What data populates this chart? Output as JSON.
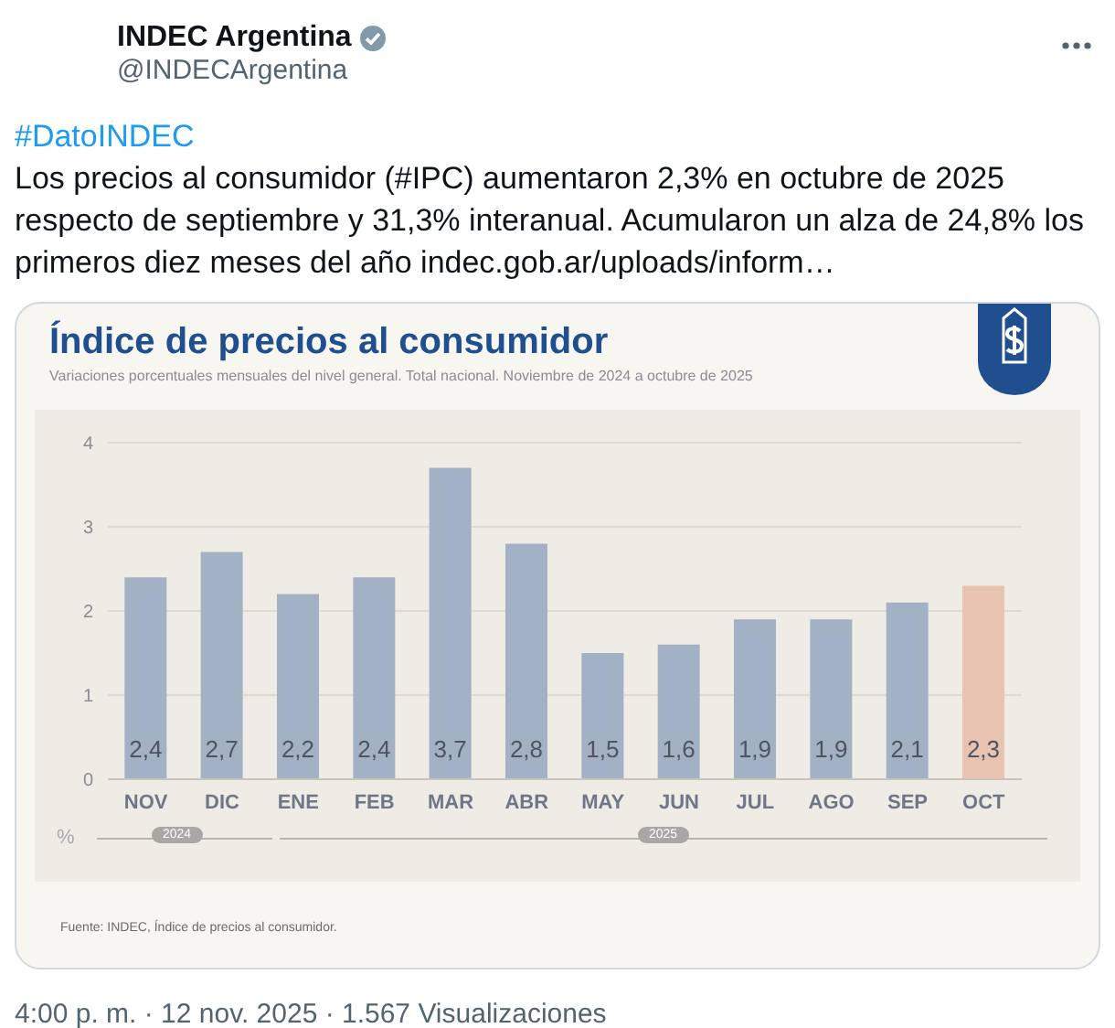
{
  "chart_data": {
    "type": "bar",
    "title": "Índice de precios al consumidor",
    "subtitle": "Variaciones porcentuales mensuales del nivel general. Total nacional. Noviembre de 2024 a octubre de 2025",
    "ylabel": "%",
    "categories": [
      "NOV",
      "DIC",
      "ENE",
      "FEB",
      "MAR",
      "ABR",
      "MAY",
      "JUN",
      "JUL",
      "AGO",
      "SEP",
      "OCT"
    ],
    "values": [
      2.4,
      2.7,
      2.2,
      2.4,
      3.7,
      2.8,
      1.5,
      1.6,
      1.9,
      1.9,
      2.1,
      2.3
    ],
    "colors": [
      "#a3b1c4",
      "#a3b1c4",
      "#a3b1c4",
      "#a3b1c4",
      "#a3b1c4",
      "#a3b1c4",
      "#a3b1c4",
      "#a3b1c4",
      "#a3b1c4",
      "#a3b1c4",
      "#a3b1c4",
      "#e9c3b1"
    ],
    "value_labels": [
      "2,4",
      "2,7",
      "2,2",
      "2,4",
      "3,7",
      "2,8",
      "1,5",
      "1,6",
      "1,9",
      "1,9",
      "2,1",
      "2,3"
    ],
    "ylim": [
      0,
      4
    ],
    "yticks": [
      0,
      1,
      2,
      3,
      4
    ],
    "grid": "y",
    "annotations": [
      "INDEC Argentina",
      "@INDECArgentina",
      "#DatoINDEC",
      "Los precios al consumidor (#IPC) aumentaron 2,3% en octubre de 2025 respecto de septiembre y 31,3% interanual. Acumularon un alza de 24,8% los primeros diez meses del año indec.gob.ar/uploads/inform…",
      "2024",
      "2025",
      "Fuente: INDEC, Índice de precios al consumidor.",
      "4:00 p. m. · 12 nov. 2025 · 1.567 Visualizaciones"
    ]
  }
}
